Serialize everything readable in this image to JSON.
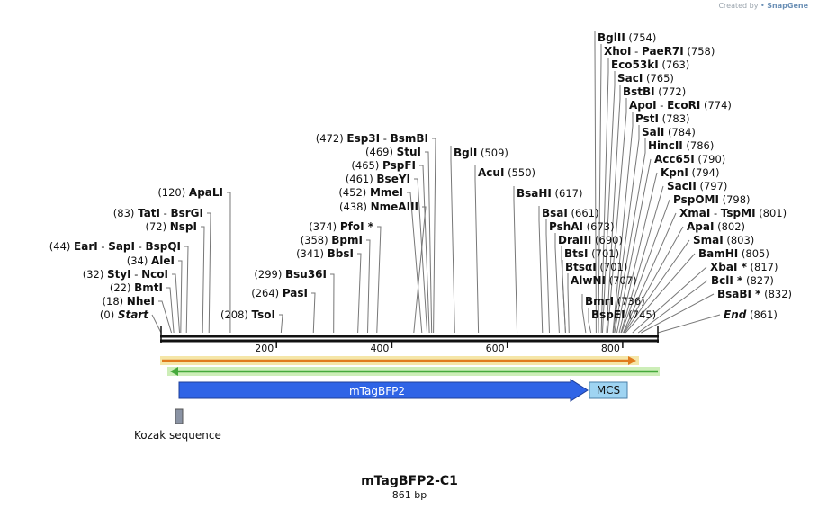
{
  "credit": {
    "prefix": "Created by",
    "brand": "SnapGene"
  },
  "plasmid": {
    "name": "mTagBFP2-C1",
    "length_label": "861 bp",
    "length_bp": 861
  },
  "axis": {
    "ticks": [
      200,
      400,
      600,
      800
    ],
    "min": 0,
    "max": 861
  },
  "features": {
    "mtagbfp2": {
      "label": "mTagBFP2",
      "color": "#2f64e6"
    },
    "mcs": {
      "label": "MCS",
      "color": "#9fd4f2"
    },
    "kozak": {
      "label": "Kozak sequence",
      "color": "#8a93a4"
    },
    "top_arrow_color": "#e07b1e",
    "bottom_arrow_color": "#45a93b"
  },
  "sites_left": [
    {
      "name": "Start",
      "pos": 0,
      "italic": true
    },
    {
      "name": "NheI",
      "pos": 18
    },
    {
      "name": "BmtI",
      "pos": 22
    },
    {
      "name": "StyI",
      "name2": "NcoI",
      "pos": 32
    },
    {
      "name": "AleI",
      "pos": 34
    },
    {
      "name": "EarI",
      "name2": "SapI",
      "name3": "BspQI",
      "pos": 44
    },
    {
      "name": "NspI",
      "pos": 72
    },
    {
      "name": "TatI",
      "name2": "BsrGI",
      "pos": 83
    },
    {
      "name": "ApaLI",
      "pos": 120
    },
    {
      "name": "TsoI",
      "pos": 208
    },
    {
      "name": "PasI",
      "pos": 264
    },
    {
      "name": "Bsu36I",
      "pos": 299
    },
    {
      "name": "BbsI",
      "pos": 341
    },
    {
      "name": "BpmI",
      "pos": 358
    },
    {
      "name": "PfoI *",
      "pos": 374
    },
    {
      "name": "NmeAIII",
      "pos": 438
    },
    {
      "name": "MmeI",
      "pos": 452
    },
    {
      "name": "BseYI",
      "pos": 461
    },
    {
      "name": "PspFI",
      "pos": 465
    },
    {
      "name": "StuI",
      "pos": 469
    },
    {
      "name": "Esp3I",
      "name2": "BsmBI",
      "pos": 472
    }
  ],
  "sites_right": [
    {
      "name": "BglI",
      "pos": 509
    },
    {
      "name": "AcuI",
      "pos": 550
    },
    {
      "name": "BsaHI",
      "pos": 617
    },
    {
      "name": "BsaI",
      "pos": 661
    },
    {
      "name": "PshAI",
      "pos": 673
    },
    {
      "name": "DraIII",
      "pos": 690
    },
    {
      "name": "BtsI",
      "pos": 701
    },
    {
      "name": "BtsαI",
      "pos": 701
    },
    {
      "name": "AlwNI",
      "pos": 707
    },
    {
      "name": "BmrI",
      "pos": 736
    },
    {
      "name": "BspEI",
      "pos": 745
    },
    {
      "name": "End",
      "pos": 861,
      "italic": true
    },
    {
      "name": "BsaBI *",
      "pos": 832
    },
    {
      "name": "BclI *",
      "pos": 827
    },
    {
      "name": "XbaI *",
      "pos": 817
    },
    {
      "name": "BamHI",
      "pos": 805
    },
    {
      "name": "SmaI",
      "pos": 803
    },
    {
      "name": "ApaI",
      "pos": 802
    },
    {
      "name": "XmaI",
      "name2": "TspMI",
      "pos": 801
    },
    {
      "name": "PspOMI",
      "pos": 798
    },
    {
      "name": "SacII",
      "pos": 797
    },
    {
      "name": "KpnI",
      "pos": 794
    },
    {
      "name": "Acc65I",
      "pos": 790
    },
    {
      "name": "HincII",
      "pos": 786
    },
    {
      "name": "SalI",
      "pos": 784
    },
    {
      "name": "PstI",
      "pos": 783
    },
    {
      "name": "ApoI",
      "name2": "EcoRI",
      "pos": 774
    },
    {
      "name": "BstBI",
      "pos": 772
    },
    {
      "name": "SacI",
      "pos": 765
    },
    {
      "name": "Eco53kI",
      "pos": 763
    },
    {
      "name": "XhoI",
      "name2": "PaeR7I",
      "pos": 758
    },
    {
      "name": "BglII",
      "pos": 754
    }
  ]
}
